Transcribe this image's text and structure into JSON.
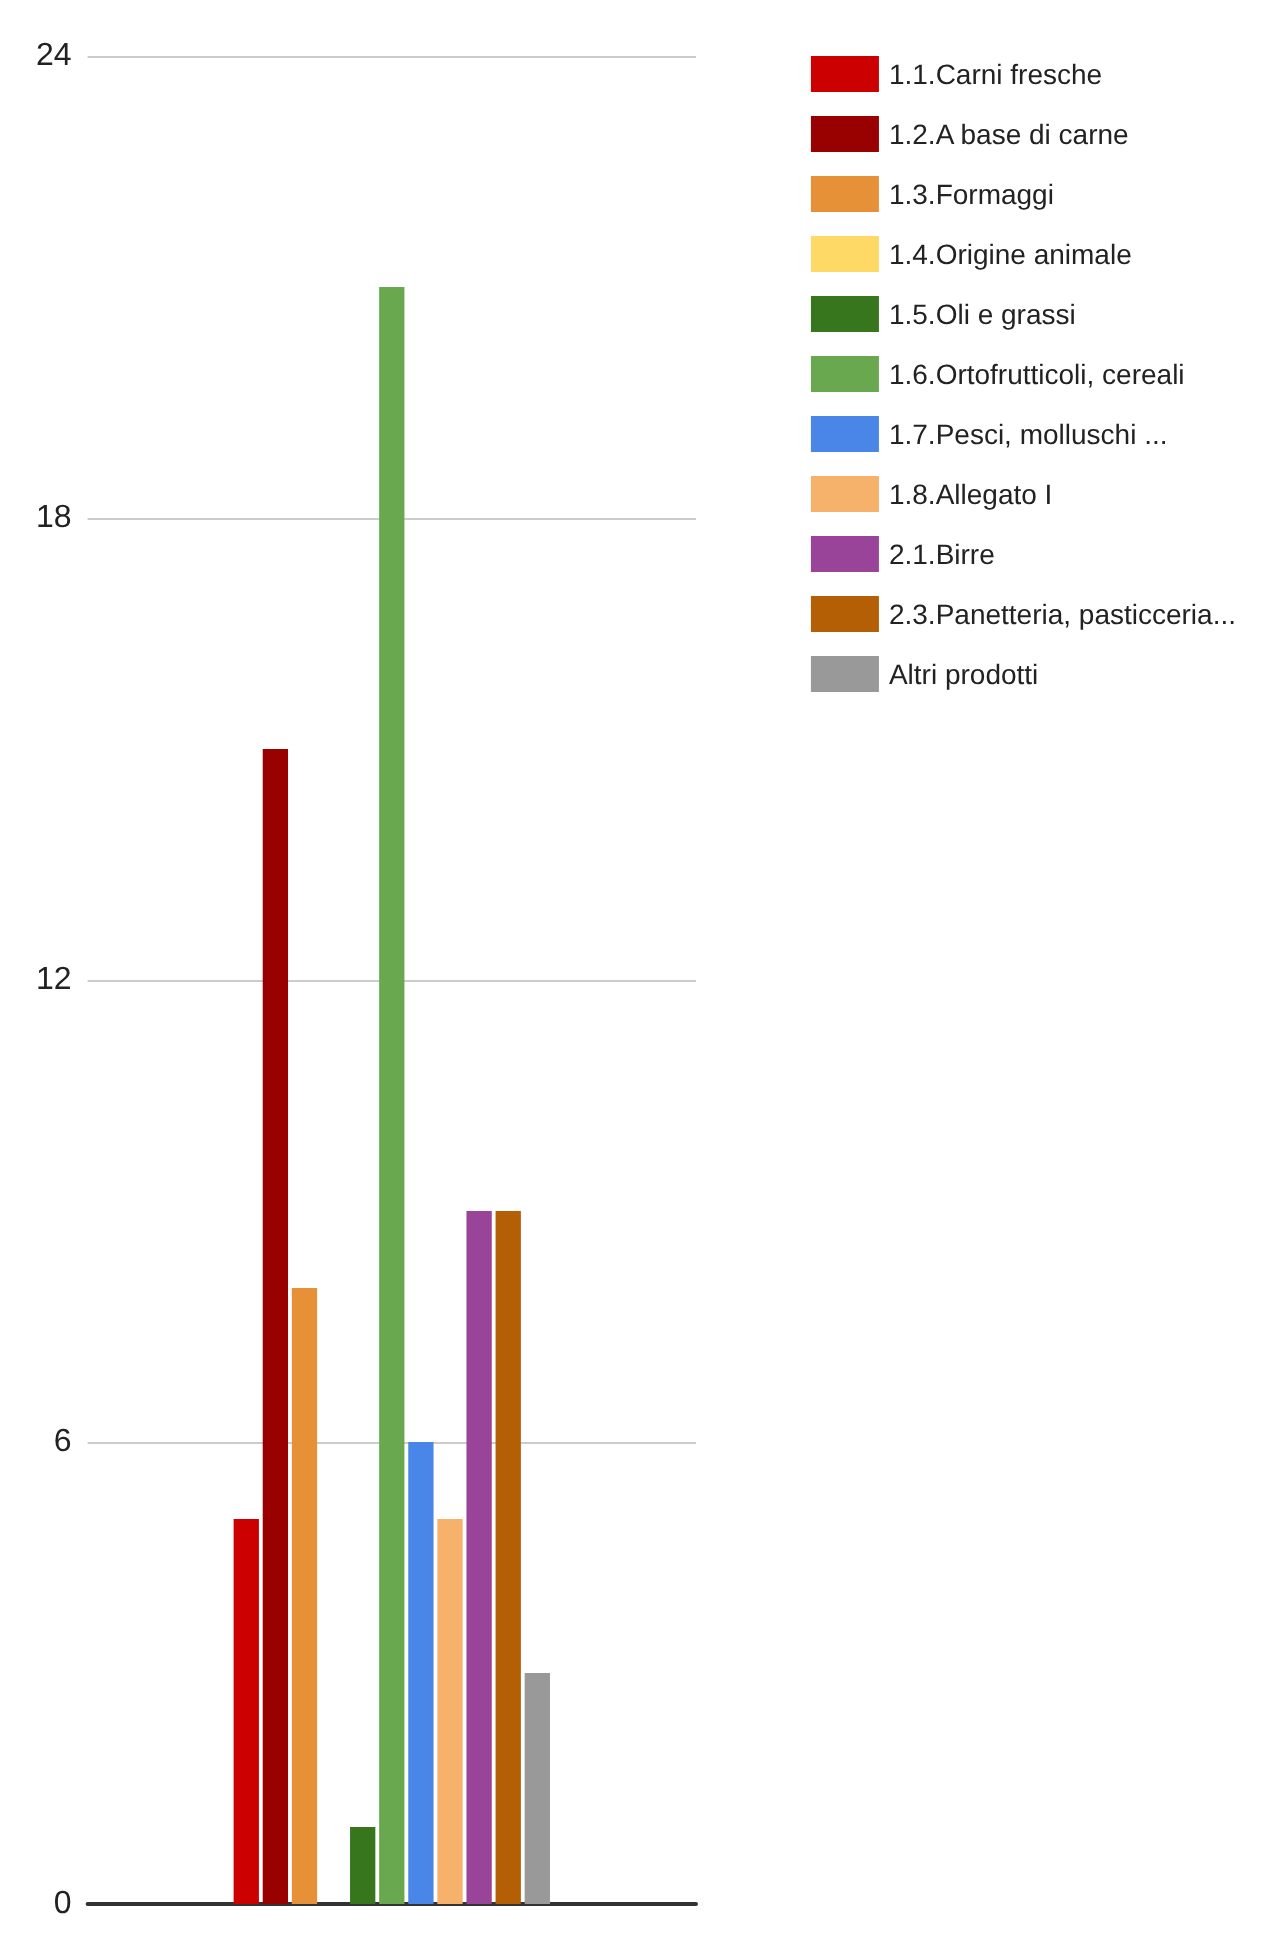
{
  "chart_data": {
    "type": "bar",
    "categories": [
      null
    ],
    "series": [
      {
        "name": "1.1.Carni fresche",
        "color": "#cc0000",
        "values": [
          5
        ]
      },
      {
        "name": "1.2.A base di carne",
        "color": "#990000",
        "values": [
          15
        ]
      },
      {
        "name": "1.3.Formaggi",
        "color": "#e69138",
        "values": [
          8
        ]
      },
      {
        "name": "1.4.Origine animale",
        "color": "#ffd966",
        "values": [
          0
        ]
      },
      {
        "name": "1.5.Oli e grassi",
        "color": "#38761d",
        "values": [
          1
        ]
      },
      {
        "name": "1.6.Ortofrutticoli, cereali",
        "color": "#6aa84f",
        "values": [
          21
        ]
      },
      {
        "name": "1.7.Pesci, molluschi ...",
        "color": "#4a86e8",
        "values": [
          6
        ]
      },
      {
        "name": "1.8.Allegato I",
        "color": "#f6b26b",
        "values": [
          5
        ]
      },
      {
        "name": "2.1.Birre",
        "color": "#994499",
        "values": [
          9
        ]
      },
      {
        "name": "2.3.Panetteria, pasticceria...",
        "color": "#b45f06",
        "values": [
          9
        ]
      },
      {
        "name": "Altri prodotti",
        "color": "#999999",
        "values": [
          3
        ]
      }
    ],
    "ylim": [
      0,
      24
    ],
    "yticks": [
      0,
      6,
      12,
      18,
      24
    ],
    "grid": "y",
    "legend": "top right"
  }
}
